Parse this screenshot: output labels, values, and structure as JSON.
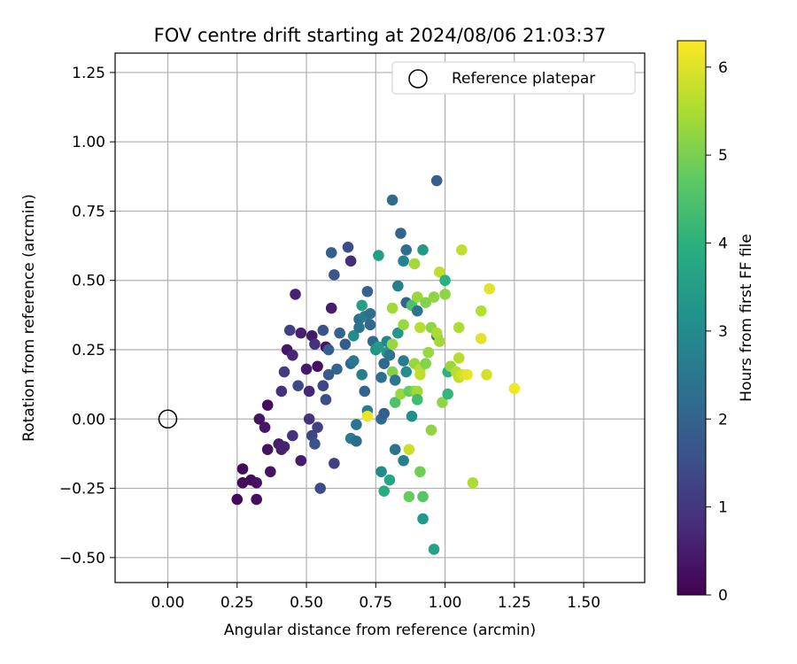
{
  "chart_data": {
    "type": "scatter",
    "title": "FOV centre drift starting at 2024/08/06 21:03:37",
    "xlabel": "Angular distance from reference (arcmin)",
    "ylabel": "Rotation from reference (arcmin)",
    "xlim": [
      -0.19,
      1.72
    ],
    "ylim": [
      -0.59,
      1.32
    ],
    "xticks": [
      0.0,
      0.25,
      0.5,
      0.75,
      1.0,
      1.25,
      1.5
    ],
    "xtick_labels": [
      "0.00",
      "0.25",
      "0.50",
      "0.75",
      "1.00",
      "1.25",
      "1.50"
    ],
    "yticks": [
      -0.5,
      -0.25,
      0.0,
      0.25,
      0.5,
      0.75,
      1.0,
      1.25
    ],
    "ytick_labels": [
      "−0.50",
      "−0.25",
      "0.00",
      "0.25",
      "0.50",
      "0.75",
      "1.00",
      "1.25"
    ],
    "grid": true,
    "legend": {
      "placement": "top-right",
      "entries": [
        "Reference platepar"
      ]
    },
    "colormap": "viridis",
    "colorbar": {
      "label": "Hours from first FF file",
      "range": [
        0,
        6.3
      ],
      "ticks": [
        0,
        1,
        2,
        3,
        4,
        5,
        6
      ],
      "tick_labels": [
        "0",
        "1",
        "2",
        "3",
        "4",
        "5",
        "6"
      ]
    },
    "reference_point": {
      "x": 0.0,
      "y": 0.0
    },
    "series": [
      {
        "points": [
          [
            0.25,
            -0.29,
            0.1
          ],
          [
            0.27,
            -0.18,
            0.1
          ],
          [
            0.27,
            -0.23,
            0.15
          ],
          [
            0.3,
            -0.22,
            0.2
          ],
          [
            0.32,
            -0.29,
            0.25
          ],
          [
            0.32,
            -0.23,
            0.3
          ],
          [
            0.33,
            0.0,
            0.35
          ],
          [
            0.35,
            -0.03,
            0.4
          ],
          [
            0.36,
            0.05,
            0.2
          ],
          [
            0.36,
            -0.11,
            0.3
          ],
          [
            0.37,
            -0.19,
            0.35
          ],
          [
            0.4,
            -0.09,
            0.5
          ],
          [
            0.41,
            -0.11,
            0.55
          ],
          [
            0.41,
            0.1,
            0.9
          ],
          [
            0.42,
            0.17,
            1.1
          ],
          [
            0.42,
            -0.1,
            0.6
          ],
          [
            0.43,
            0.25,
            0.4
          ],
          [
            0.44,
            0.32,
            1.2
          ],
          [
            0.45,
            0.23,
            0.7
          ],
          [
            0.45,
            -0.06,
            0.9
          ],
          [
            0.46,
            0.45,
            0.6
          ],
          [
            0.47,
            0.12,
            1.4
          ],
          [
            0.48,
            0.31,
            0.55
          ],
          [
            0.48,
            -0.15,
            0.5
          ],
          [
            0.5,
            0.18,
            0.45
          ],
          [
            0.51,
            0.1,
            0.7
          ],
          [
            0.51,
            0.0,
            0.9
          ],
          [
            0.52,
            0.3,
            0.45
          ],
          [
            0.52,
            -0.06,
            1.3
          ],
          [
            0.53,
            -0.09,
            1.6
          ],
          [
            0.53,
            0.27,
            0.9
          ],
          [
            0.54,
            0.19,
            0.3
          ],
          [
            0.54,
            -0.03,
            1.2
          ],
          [
            0.55,
            -0.25,
            1.4
          ],
          [
            0.56,
            0.12,
            1.3
          ],
          [
            0.56,
            0.32,
            1.6
          ],
          [
            0.57,
            0.26,
            0.35
          ],
          [
            0.57,
            0.07,
            1.5
          ],
          [
            0.58,
            0.25,
            1.9
          ],
          [
            0.58,
            0.16,
            1.8
          ],
          [
            0.59,
            0.4,
            0.5
          ],
          [
            0.59,
            0.6,
            1.9
          ],
          [
            0.6,
            0.52,
            1.7
          ],
          [
            0.6,
            -0.16,
            1.2
          ],
          [
            0.61,
            0.18,
            2.1
          ],
          [
            0.62,
            0.31,
            2.0
          ],
          [
            0.64,
            0.27,
            1.8
          ],
          [
            0.65,
            0.62,
            1.5
          ],
          [
            0.66,
            0.57,
            0.8
          ],
          [
            0.66,
            0.2,
            2.1
          ],
          [
            0.66,
            -0.07,
            2.6
          ],
          [
            0.67,
            0.21,
            2.5
          ],
          [
            0.67,
            0.3,
            3.0
          ],
          [
            0.68,
            -0.02,
            2.4
          ],
          [
            0.68,
            -0.08,
            2.2
          ],
          [
            0.69,
            0.36,
            2.3
          ],
          [
            0.69,
            0.33,
            2.4
          ],
          [
            0.7,
            0.41,
            3.5
          ],
          [
            0.7,
            0.16,
            2.7
          ],
          [
            0.71,
            0.37,
            2.6
          ],
          [
            0.71,
            0.1,
            2.0
          ],
          [
            0.72,
            0.46,
            2.0
          ],
          [
            0.72,
            0.03,
            2.7
          ],
          [
            0.72,
            0.01,
            6.1
          ],
          [
            0.73,
            0.38,
            2.3
          ],
          [
            0.73,
            0.34,
            2.1
          ],
          [
            0.74,
            0.28,
            2.2
          ],
          [
            0.75,
            0.25,
            3.2
          ],
          [
            0.76,
            0.59,
            3.5
          ],
          [
            0.76,
            0.26,
            3.4
          ],
          [
            0.77,
            0.15,
            2.3
          ],
          [
            0.77,
            0.0,
            2.2
          ],
          [
            0.77,
            -0.19,
            3.0
          ],
          [
            0.78,
            -0.26,
            3.9
          ],
          [
            0.78,
            0.2,
            2.1
          ],
          [
            0.78,
            0.02,
            1.9
          ],
          [
            0.79,
            0.24,
            3.3
          ],
          [
            0.79,
            0.28,
            2.9
          ],
          [
            0.8,
            0.23,
            2.4
          ],
          [
            0.8,
            -0.22,
            3.7
          ],
          [
            0.81,
            0.79,
            2.2
          ],
          [
            0.81,
            0.4,
            5.4
          ],
          [
            0.81,
            0.27,
            5.3
          ],
          [
            0.81,
            0.17,
            5.1
          ],
          [
            0.82,
            0.14,
            2.5
          ],
          [
            0.82,
            -0.11,
            2.4
          ],
          [
            0.82,
            0.06,
            4.5
          ],
          [
            0.83,
            0.48,
            2.7
          ],
          [
            0.83,
            0.31,
            3.3
          ],
          [
            0.84,
            0.67,
            2.0
          ],
          [
            0.84,
            0.09,
            5.3
          ],
          [
            0.85,
            0.21,
            2.6
          ],
          [
            0.85,
            0.34,
            5.3
          ],
          [
            0.85,
            0.57,
            2.8
          ],
          [
            0.85,
            -0.15,
            2.7
          ],
          [
            0.86,
            0.61,
            2.3
          ],
          [
            0.86,
            0.42,
            2.1
          ],
          [
            0.86,
            0.17,
            3.1
          ],
          [
            0.87,
            -0.11,
            5.8
          ],
          [
            0.87,
            0.1,
            4.8
          ],
          [
            0.87,
            -0.28,
            4.8
          ],
          [
            0.88,
            0.01,
            3.1
          ],
          [
            0.88,
            0.41,
            4.5
          ],
          [
            0.89,
            0.2,
            5.3
          ],
          [
            0.89,
            0.56,
            5.4
          ],
          [
            0.89,
            0.1,
            5.0
          ],
          [
            0.9,
            0.44,
            5.3
          ],
          [
            0.9,
            0.39,
            2.4
          ],
          [
            0.9,
            0.1,
            5.4
          ],
          [
            0.9,
            0.07,
            4.3
          ],
          [
            0.91,
            0.18,
            5.6
          ],
          [
            0.91,
            0.33,
            5.6
          ],
          [
            0.91,
            -0.19,
            4.9
          ],
          [
            0.91,
            0.16,
            5.7
          ],
          [
            0.92,
            0.61,
            3.4
          ],
          [
            0.92,
            -0.36,
            3.3
          ],
          [
            0.92,
            -0.28,
            4.6
          ],
          [
            0.93,
            0.42,
            5.1
          ],
          [
            0.93,
            0.2,
            5.1
          ],
          [
            0.94,
            0.24,
            5.3
          ],
          [
            0.95,
            -0.04,
            5.2
          ],
          [
            0.95,
            0.33,
            5.2
          ],
          [
            0.96,
            0.44,
            5.2
          ],
          [
            0.96,
            -0.47,
            3.6
          ],
          [
            0.97,
            0.3,
            2.3
          ],
          [
            0.97,
            0.86,
            1.9
          ],
          [
            0.97,
            0.31,
            5.5
          ],
          [
            0.98,
            0.53,
            5.7
          ],
          [
            0.98,
            0.28,
            5.4
          ],
          [
            0.99,
            0.06,
            5.2
          ],
          [
            1.0,
            0.45,
            5.2
          ],
          [
            1.0,
            0.5,
            4.0
          ],
          [
            1.01,
            0.17,
            4.0
          ],
          [
            1.01,
            0.09,
            4.1
          ],
          [
            1.02,
            0.19,
            5.3
          ],
          [
            1.04,
            0.17,
            5.6
          ],
          [
            1.05,
            0.33,
            5.5
          ],
          [
            1.05,
            0.22,
            5.6
          ],
          [
            1.05,
            0.15,
            5.7
          ],
          [
            1.06,
            0.61,
            5.7
          ],
          [
            1.06,
            0.16,
            5.9
          ],
          [
            1.08,
            0.16,
            6.1
          ],
          [
            1.1,
            -0.23,
            5.5
          ],
          [
            1.13,
            0.39,
            5.6
          ],
          [
            1.13,
            0.29,
            6.0
          ],
          [
            1.15,
            0.16,
            5.9
          ],
          [
            1.16,
            0.47,
            6.0
          ],
          [
            1.25,
            0.11,
            6.2
          ]
        ]
      }
    ]
  }
}
